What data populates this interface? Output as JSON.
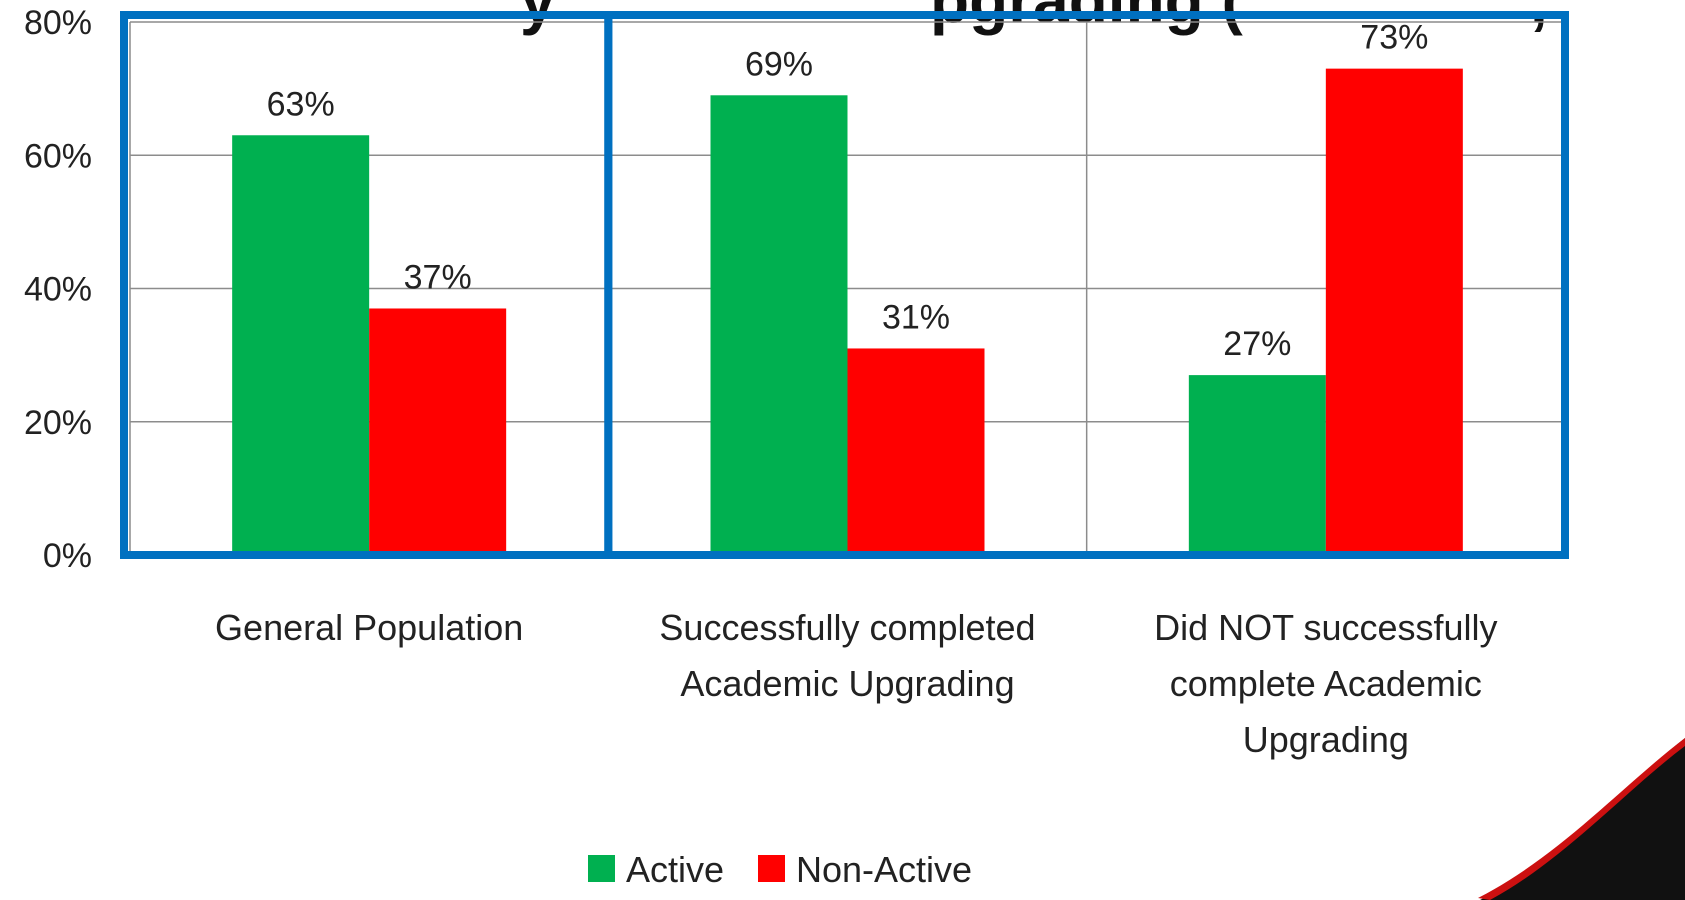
{
  "header": {
    "title_fragment": "y",
    "title_fragment_2": "pgrading (",
    "title_fragment_3": ","
  },
  "chart_data": {
    "type": "bar",
    "categories": [
      [
        "General Population"
      ],
      [
        "Successfully completed",
        "Academic Upgrading"
      ],
      [
        "Did NOT successfully",
        "complete Academic",
        "Upgrading"
      ]
    ],
    "series": [
      {
        "name": "Active",
        "color": "#00b050",
        "values": [
          63,
          69,
          27
        ],
        "labels": [
          "63%",
          "69%",
          "27%"
        ]
      },
      {
        "name": "Non-Active",
        "color": "#ff0000",
        "values": [
          37,
          31,
          73
        ],
        "labels": [
          "37%",
          "31%",
          "73%"
        ]
      }
    ],
    "ylim": [
      0,
      80
    ],
    "yticks": [
      0,
      20,
      40,
      60,
      80
    ],
    "ytick_labels": [
      "0%",
      "20%",
      "40%",
      "60%",
      "80%"
    ],
    "grid": true,
    "legend_position": "bottom",
    "highlight_box_color": "#0070c0"
  }
}
